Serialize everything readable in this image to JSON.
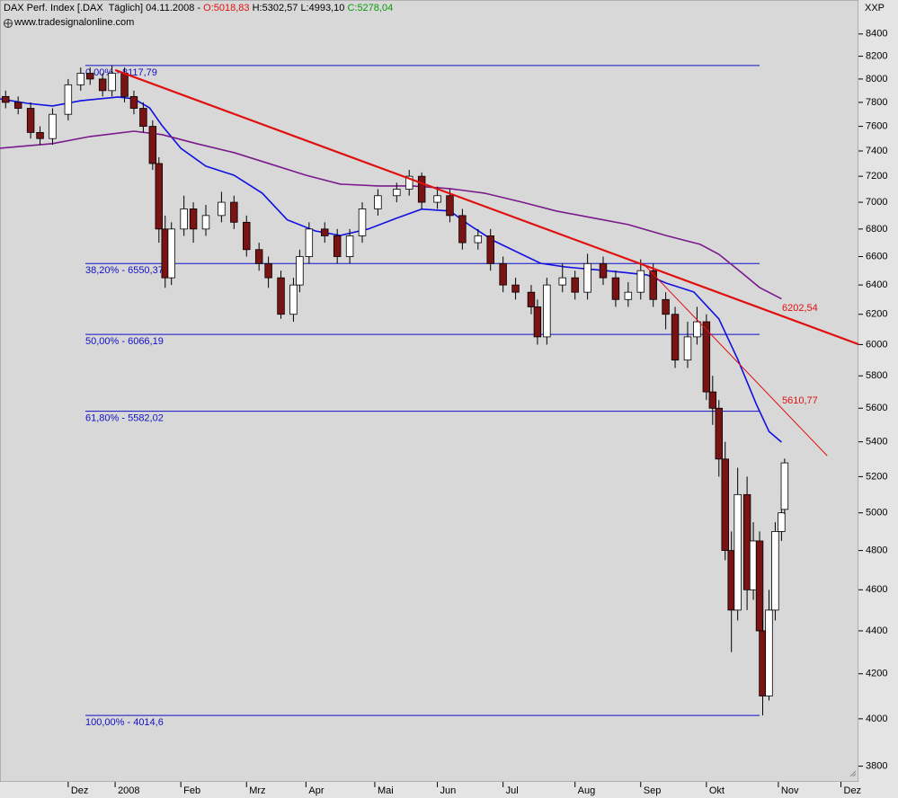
{
  "chart_data": {
    "type": "candlestick",
    "title": "DAX Perf. Index [.DAX  Täglich] 04.11.2008 -",
    "open_label": "O:5018,83",
    "high_label": "H:5302,57",
    "low_label": "L:4993,10",
    "close_label": "C:5278,04",
    "source": "www.tradesignalonline.com",
    "symbol": "XXP",
    "log_y": true,
    "ylim": [
      3736,
      8715
    ],
    "yticks": [
      3800,
      4000,
      4200,
      4400,
      4600,
      4800,
      5000,
      5200,
      5400,
      5600,
      5800,
      6000,
      6200,
      6400,
      6600,
      6800,
      7000,
      7200,
      7400,
      7600,
      7800,
      8000,
      8200,
      8400
    ],
    "xlim": [
      -36.8,
      237.6
    ],
    "xticks": [
      {
        "value": -15,
        "label": "Dez"
      },
      {
        "value": 0,
        "label": "2008"
      },
      {
        "value": 21,
        "label": "Feb"
      },
      {
        "value": 42,
        "label": "Mrz"
      },
      {
        "value": 61,
        "label": "Apr"
      },
      {
        "value": 83,
        "label": "Mai"
      },
      {
        "value": 103,
        "label": "Jun"
      },
      {
        "value": 124,
        "label": "Jul"
      },
      {
        "value": 147,
        "label": "Aug"
      },
      {
        "value": 168,
        "label": "Sep"
      },
      {
        "value": 189,
        "label": "Okt"
      },
      {
        "value": 212,
        "label": "Nov"
      },
      {
        "value": 232,
        "label": "Dez"
      }
    ],
    "up_color": "#ffffff",
    "down_color": "#7a1414",
    "x": [
      -35,
      -31,
      -27,
      -24,
      -20,
      -15,
      -11,
      -8,
      -4,
      -1,
      3,
      6,
      9,
      12,
      14,
      16,
      18,
      22,
      25,
      29,
      34,
      38,
      42,
      46,
      49,
      53,
      57,
      59,
      62,
      67,
      71,
      75,
      79,
      84,
      90,
      94,
      98,
      103,
      107,
      111,
      116,
      120,
      124,
      128,
      133,
      135,
      138,
      143,
      147,
      151,
      156,
      160,
      164,
      168,
      172,
      176,
      179,
      183,
      186,
      189,
      191,
      193,
      195,
      197,
      199,
      202,
      204,
      206,
      207,
      209,
      211,
      213,
      214
    ],
    "open": [
      7850,
      7800,
      7750,
      7550,
      7500,
      7700,
      7950,
      8050,
      8000,
      7900,
      8050,
      7850,
      7750,
      7600,
      7300,
      6800,
      6450,
      6800,
      6950,
      6800,
      6900,
      7000,
      6850,
      6650,
      6550,
      6450,
      6200,
      6400,
      6600,
      6800,
      6750,
      6600,
      6750,
      6950,
      7050,
      7100,
      7200,
      7000,
      7050,
      6900,
      6700,
      6750,
      6550,
      6400,
      6350,
      6250,
      6050,
      6400,
      6450,
      6350,
      6550,
      6450,
      6300,
      6350,
      6500,
      6300,
      6200,
      5900,
      6050,
      6150,
      5700,
      5600,
      5300,
      4800,
      4500,
      5100,
      4600,
      4850,
      4400,
      4100,
      4500,
      4900,
      5018.83
    ],
    "high": [
      7900,
      7850,
      7800,
      7600,
      7750,
      8000,
      8100,
      8100,
      8050,
      8117.79,
      8100,
      7900,
      7800,
      7650,
      7350,
      6900,
      6850,
      7050,
      7000,
      6980,
      7080,
      7050,
      6900,
      6700,
      6600,
      6500,
      6450,
      6650,
      6850,
      6850,
      6800,
      6800,
      7000,
      7100,
      7150,
      7250,
      7230,
      7120,
      7100,
      6950,
      6800,
      6800,
      6600,
      6450,
      6400,
      6300,
      6450,
      6550,
      6500,
      6620,
      6600,
      6500,
      6420,
      6580,
      6550,
      6350,
      6250,
      6150,
      6250,
      6200,
      5800,
      5650,
      5400,
      4900,
      5250,
      5200,
      4950,
      4900,
      4450,
      4600,
      4950,
      5100,
      5302.57
    ],
    "low": [
      7750,
      7700,
      7500,
      7450,
      7450,
      7650,
      7900,
      7950,
      7850,
      7850,
      7800,
      7700,
      7550,
      7250,
      6700,
      6380,
      6400,
      6750,
      6700,
      6750,
      6850,
      6800,
      6600,
      6500,
      6380,
      6170,
      6150,
      6350,
      6550,
      6700,
      6550,
      6550,
      6700,
      6900,
      7000,
      7050,
      6950,
      6950,
      6850,
      6650,
      6650,
      6500,
      6350,
      6300,
      6200,
      6000,
      6000,
      6350,
      6300,
      6300,
      6400,
      6250,
      6250,
      6300,
      6250,
      6100,
      5850,
      5850,
      6000,
      5650,
      5500,
      5200,
      4750,
      4300,
      4450,
      4500,
      4550,
      4300,
      4014.6,
      4080,
      4450,
      4850,
      4993.1
    ],
    "close": [
      7800,
      7750,
      7550,
      7500,
      7700,
      7950,
      8050,
      8000,
      7900,
      8050,
      7850,
      7750,
      7600,
      7300,
      6800,
      6450,
      6800,
      6950,
      6800,
      6900,
      7000,
      6850,
      6650,
      6550,
      6450,
      6200,
      6400,
      6600,
      6800,
      6750,
      6600,
      6750,
      6950,
      7050,
      7100,
      7200,
      7000,
      7050,
      6900,
      6700,
      6750,
      6550,
      6400,
      6350,
      6250,
      6050,
      6400,
      6450,
      6350,
      6550,
      6450,
      6300,
      6350,
      6500,
      6300,
      6200,
      5900,
      6050,
      6150,
      5700,
      5600,
      5300,
      4800,
      4500,
      5100,
      4600,
      4850,
      4400,
      4100,
      4500,
      4900,
      5000,
      5278.04
    ],
    "series": [
      {
        "color": "#1010e0",
        "x": [
          -37,
          -28,
          -20,
          -11,
          1,
          6,
          11,
          15,
          21,
          29,
          38,
          47,
          55,
          64,
          72,
          81,
          90,
          98,
          107,
          113,
          121,
          130,
          136,
          144,
          153,
          162,
          170,
          176,
          185,
          193,
          199,
          205,
          209,
          213
        ],
        "values": [
          7830,
          7792,
          7770,
          7814,
          7846,
          7830,
          7754,
          7606,
          7422,
          7279,
          7208,
          7070,
          6868,
          6786,
          6753,
          6801,
          6881,
          6948,
          6934,
          6833,
          6714,
          6616,
          6552,
          6526,
          6508,
          6489,
          6470,
          6414,
          6352,
          6169,
          5905,
          5623,
          5461,
          5398
        ]
      },
      {
        "color": "#7a1a8c",
        "x": [
          -37,
          -20,
          -8,
          6,
          15,
          26,
          38,
          49,
          61,
          72,
          84,
          95,
          107,
          118,
          130,
          141,
          153,
          164,
          176,
          187,
          193,
          199,
          206,
          213
        ],
        "values": [
          7422,
          7459,
          7517,
          7560,
          7532,
          7459,
          7387,
          7301,
          7208,
          7139,
          7125,
          7125,
          7104,
          7070,
          7001,
          6934,
          6881,
          6833,
          6753,
          6688,
          6616,
          6508,
          6383,
          6304
        ]
      }
    ],
    "fibonacci": {
      "color": "#1010c8",
      "from": -9.5,
      "to": 206,
      "levels": [
        {
          "label": "0,00% - 8117,79",
          "value": 8117.79
        },
        {
          "label": "38,20% - 6550,37",
          "value": 6550.37
        },
        {
          "label": "50,00% - 6066,19",
          "value": 6066.19
        },
        {
          "label": "61,80% - 5582,02",
          "value": 5582.02
        },
        {
          "label": "100,00% - 4014,6",
          "value": 4014.6
        }
      ]
    },
    "trendlines": [
      {
        "color": "#e01010",
        "x": [
          0,
          237.6
        ],
        "values": [
          8078,
          6002
        ],
        "label": "6202,54",
        "label_value": 6202.54
      },
      {
        "color": "#e01010",
        "x": [
          168.7,
          227.6
        ],
        "values": [
          6552,
          5319
        ],
        "label": "5610,77",
        "label_value": 5610.77
      }
    ]
  }
}
